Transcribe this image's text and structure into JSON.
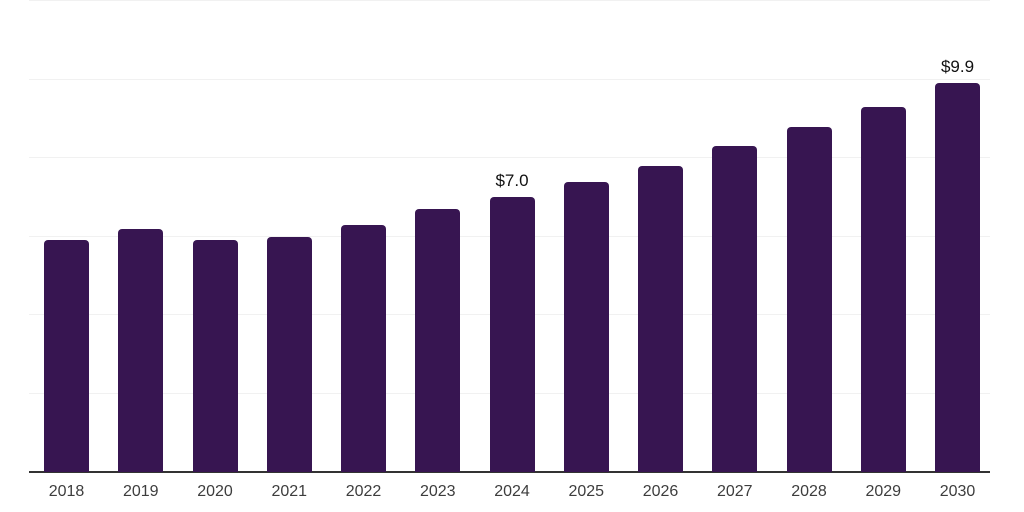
{
  "chart_data": {
    "type": "bar",
    "title": "",
    "xlabel": "",
    "ylabel": "",
    "categories": [
      "2018",
      "2019",
      "2020",
      "2021",
      "2022",
      "2023",
      "2024",
      "2025",
      "2026",
      "2027",
      "2028",
      "2029",
      "2030"
    ],
    "values": [
      5.9,
      6.2,
      5.9,
      6.0,
      6.3,
      6.7,
      7.0,
      7.4,
      7.8,
      8.3,
      8.8,
      9.3,
      9.9
    ],
    "annotations": [
      {
        "category": "2024",
        "text": "$7.0"
      },
      {
        "category": "2030",
        "text": "$9.9"
      }
    ],
    "ylim": [
      0,
      12
    ],
    "gridline_values": [
      2,
      4,
      6,
      8,
      10,
      12
    ],
    "grid": "horizontal",
    "legend_position": "none",
    "colors": {
      "bar": "#371551",
      "gridline": "#f1f1f1",
      "axis_line": "#333333",
      "x_tick_label": "#3d3d3d",
      "annotation": "#111111",
      "background": "#ffffff"
    }
  }
}
